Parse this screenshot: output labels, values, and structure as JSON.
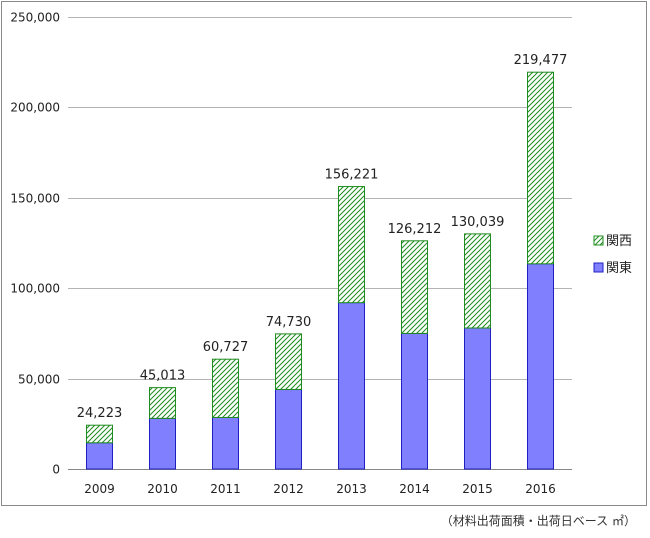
{
  "chart_data": {
    "type": "bar",
    "stacked": true,
    "categories": [
      "2009",
      "2010",
      "2011",
      "2012",
      "2013",
      "2014",
      "2015",
      "2016"
    ],
    "series": [
      {
        "name": "関東",
        "values": [
          14500,
          28000,
          28500,
          44000,
          92000,
          75000,
          78000,
          113500
        ]
      },
      {
        "name": "関西",
        "values": [
          9723,
          17013,
          32227,
          30730,
          64221,
          51212,
          52039,
          105977
        ]
      }
    ],
    "totals": [
      24223,
      45013,
      60727,
      74730,
      156221,
      126212,
      130039,
      219477
    ],
    "total_labels": [
      "24,223",
      "45,013",
      "60,727",
      "74,730",
      "156,221",
      "126,212",
      "130,039",
      "219,477"
    ],
    "ylim": [
      0,
      250000
    ],
    "yticks": [
      0,
      50000,
      100000,
      150000,
      200000,
      250000
    ],
    "ytick_labels": [
      "0",
      "50,000",
      "100,000",
      "150,000",
      "200,000",
      "250,000"
    ],
    "grid": true,
    "legend": "right",
    "colors": {
      "kanto_fill": "#8080ff",
      "kanto_border": "#2020c0",
      "kansai_stroke": "#1e8c1e",
      "gridline": "#b4b4b4"
    }
  },
  "footnote": "（材料出荷面積・出荷日ベース ㎡）"
}
